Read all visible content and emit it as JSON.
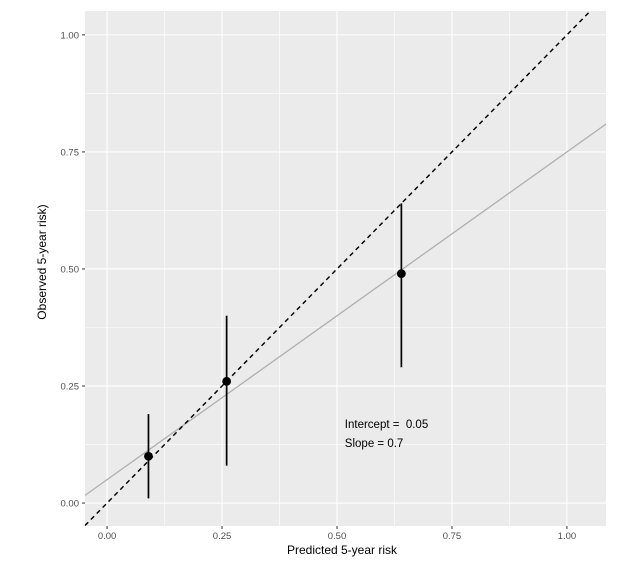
{
  "chart_data": {
    "type": "scatter",
    "title": "",
    "xlabel": "Predicted 5-year risk",
    "ylabel": "Observed 5-year risk)",
    "xlim": [
      -0.048,
      1.085
    ],
    "ylim": [
      -0.049,
      1.051
    ],
    "grid": true,
    "legend": false,
    "x_ticks": {
      "values": [
        0,
        0.25,
        0.5,
        0.75,
        1.0
      ],
      "labels": [
        "0.00",
        "0.25",
        "0.50",
        "0.75",
        "1.00"
      ]
    },
    "y_ticks": {
      "values": [
        0,
        0.25,
        0.5,
        0.75,
        1.0
      ],
      "labels": [
        "0.00",
        "0.25",
        "0.50",
        "0.75",
        "1.00"
      ]
    },
    "minor_gridlines": [
      0.125,
      0.375,
      0.625,
      0.875
    ],
    "points": [
      {
        "x": 0.09,
        "y": 0.1,
        "ci_low": 0.01,
        "ci_high": 0.19
      },
      {
        "x": 0.26,
        "y": 0.26,
        "ci_low": 0.08,
        "ci_high": 0.4
      },
      {
        "x": 0.64,
        "y": 0.49,
        "ci_low": 0.29,
        "ci_high": 0.64
      }
    ],
    "identity_line": {
      "slope": 1,
      "intercept": 0,
      "style": "dashed",
      "color": "#000000"
    },
    "calibration_line": {
      "intercept": 0.05,
      "slope": 0.7,
      "style": "solid",
      "color": "#b0b0b0"
    },
    "annotations": [
      {
        "text": "Intercept =  0.05",
        "x": 0.517,
        "y": 0.16
      },
      {
        "text": "Slope = 0.7",
        "x": 0.517,
        "y": 0.12
      }
    ],
    "style": {
      "panel_bg": "#ebebeb",
      "grid_color": "#ffffff",
      "point_color": "#000000",
      "errorbar_color": "#000000",
      "tick_mark_color": "#333333",
      "tick_label_color": "#4d4d4d",
      "axis_label_color": "#000000",
      "annotation_color": "#000000"
    }
  }
}
